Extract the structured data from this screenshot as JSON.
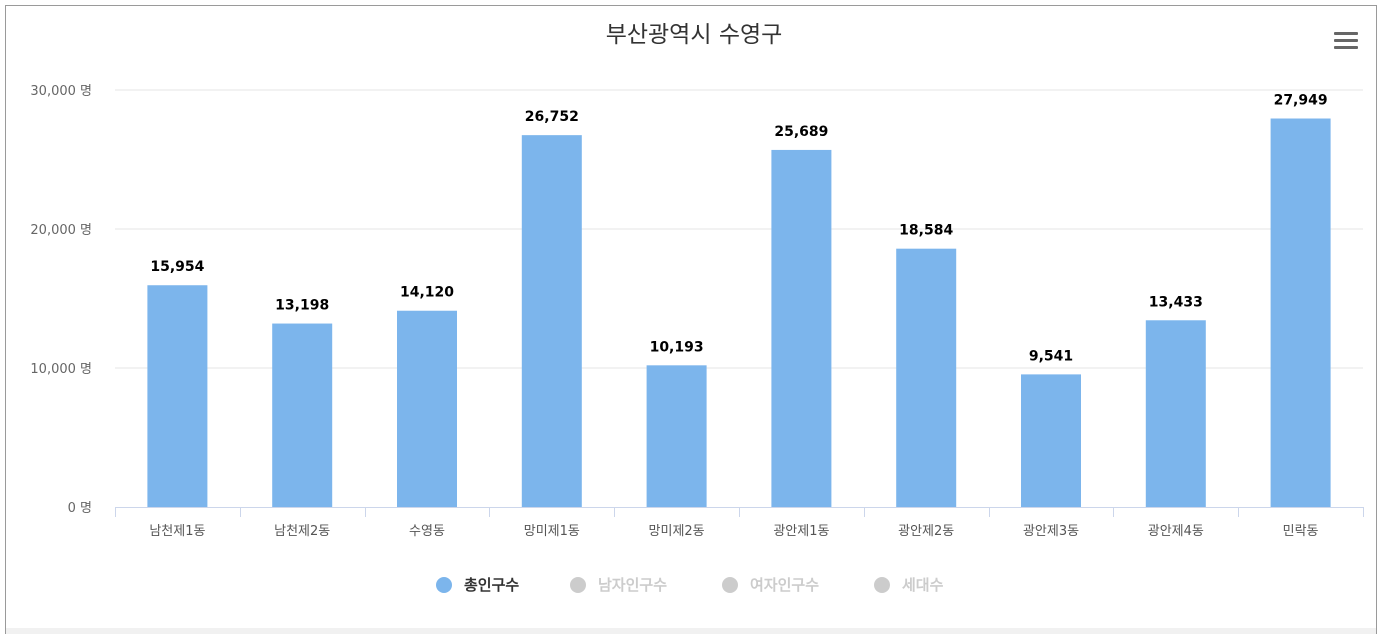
{
  "chart_data": {
    "type": "bar",
    "title": "부산광역시 수영구",
    "categories": [
      "남천제1동",
      "남천제2동",
      "수영동",
      "망미제1동",
      "망미제2동",
      "광안제1동",
      "광안제2동",
      "광안제3동",
      "광안제4동",
      "민락동"
    ],
    "values": [
      15954,
      13198,
      14120,
      26752,
      10193,
      25689,
      18584,
      9541,
      13433,
      27949
    ],
    "data_labels": [
      "15,954",
      "13,198",
      "14,120",
      "26,752",
      "10,193",
      "25,689",
      "18,584",
      "9,541",
      "13,433",
      "27,949"
    ],
    "y_ticks": [
      0,
      10000,
      20000,
      30000
    ],
    "y_tick_labels": [
      "0 명",
      "10,000 명",
      "20,000 명",
      "30,000 명"
    ],
    "ylim": [
      0,
      30000
    ],
    "grid": true,
    "legend_position": "bottom-center",
    "legend": [
      {
        "name": "총인구수",
        "color": "#7cb5ec",
        "active": true
      },
      {
        "name": "남자인구수",
        "color": "#cccccc",
        "active": false
      },
      {
        "name": "여자인구수",
        "color": "#cccccc",
        "active": false
      },
      {
        "name": "세대수",
        "color": "#cccccc",
        "active": false
      }
    ],
    "series": [
      {
        "name": "총인구수",
        "color": "#7cb5ec"
      }
    ]
  },
  "menu_icon": "hamburger-menu-icon",
  "colors": {
    "bar": "#7cb5ec",
    "legend_active_text": "#333333",
    "legend_inactive_text": "#cccccc",
    "grid": "#e6e6e6",
    "axis": "#ccd6eb"
  }
}
